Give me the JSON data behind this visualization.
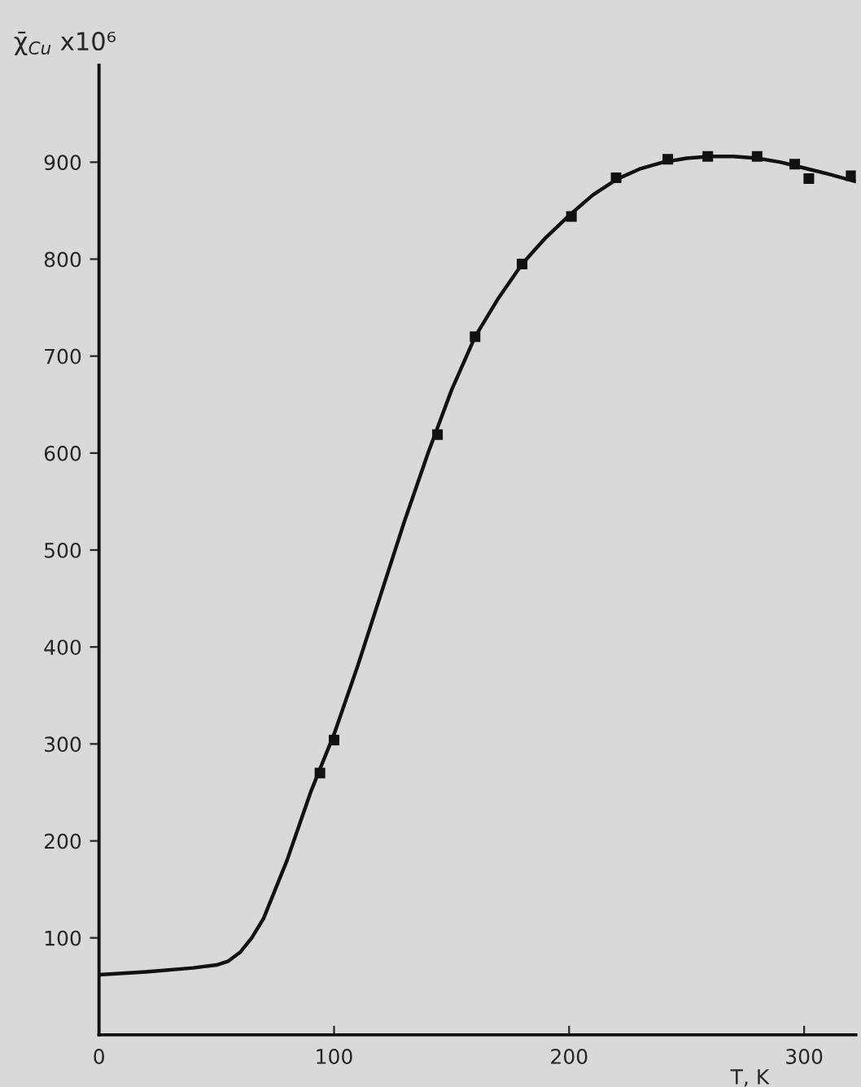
{
  "chart_data": {
    "type": "line",
    "xlabel": "T, K",
    "ylabel": "χ̄$_{Cu}$ x10⁶",
    "xlim": [
      0,
      322
    ],
    "ylim": [
      0,
      1000
    ],
    "xticks": [
      0,
      {
        "value": 100,
        "label": "100"
      },
      200,
      300
    ],
    "yticks": [
      100,
      200,
      300,
      400,
      500,
      600,
      700,
      800,
      900
    ],
    "grid": false,
    "legend": false,
    "series": [
      {
        "color": "#111111",
        "marker": "none",
        "line_style": "solid",
        "x": [
          0,
          20,
          40,
          50,
          55,
          60,
          65,
          70,
          75,
          80,
          85,
          90,
          95,
          100,
          110,
          120,
          130,
          140,
          150,
          160,
          170,
          180,
          190,
          200,
          210,
          220,
          230,
          240,
          250,
          260,
          270,
          280,
          290,
          300,
          310,
          322
        ],
        "values": [
          62,
          65,
          69,
          72,
          76,
          85,
          100,
          120,
          150,
          180,
          215,
          250,
          280,
          310,
          380,
          455,
          530,
          600,
          665,
          720,
          760,
          795,
          822,
          845,
          866,
          882,
          893,
          900,
          904,
          906,
          906,
          904,
          900,
          894,
          888,
          880
        ]
      },
      {
        "type": "scatter",
        "color": "#111111",
        "marker": "square",
        "x": [
          94,
          100,
          144,
          160,
          180,
          201,
          220,
          242,
          259,
          280,
          296,
          302,
          320
        ],
        "values": [
          270,
          304,
          619,
          720,
          795,
          844,
          884,
          903,
          906,
          906,
          898,
          883,
          886
        ]
      }
    ]
  }
}
